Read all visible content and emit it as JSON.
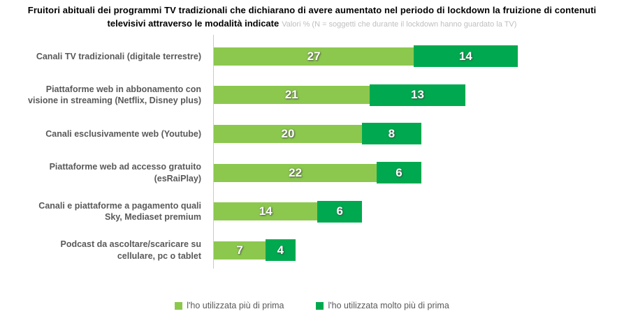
{
  "title": {
    "line1": "Fruitori abituali dei programmi TV tradizionali che dichiarano di avere aumentato nel periodo di lockdown la fruizione di contenuti",
    "line2": "televisivi attraverso le modalità indicate",
    "subtitle": "Valori % (N = soggetti che durante il lockdown hanno guardato la TV)"
  },
  "chart_data": {
    "type": "bar",
    "orientation": "horizontal",
    "stacked": true,
    "title": "Fruitori abituali dei programmi TV tradizionali che dichiarano di avere aumentato nel periodo di lockdown la fruizione di contenuti televisivi attraverso le modalità indicate",
    "subtitle": "Valori % (N = soggetti che durante il lockdown hanno guardato la TV)",
    "value_unit": "%",
    "categories": [
      [
        "Canali TV tradizionali (digitale terrestre)"
      ],
      [
        "Piattaforme web in abbonamento con",
        "visione in streaming (Netflix, Disney plus)"
      ],
      [
        "Canali esclusivamente web (Youtube)"
      ],
      [
        "Piattaforme web ad accesso gratuito",
        "(esRaiPlay)"
      ],
      [
        "Canali e piattaforme a pagamento quali",
        "Sky, Mediaset premium"
      ],
      [
        "Podcast da ascoltare/scaricare su",
        "cellulare, pc o tablet"
      ]
    ],
    "series": [
      {
        "name": "l'ho utilizzata più di prima",
        "color": "#8CC84E",
        "values": [
          27,
          21,
          20,
          22,
          14,
          7
        ]
      },
      {
        "name": "l'ho utilizzata molto più di prima",
        "color": "#00A94F",
        "values": [
          14,
          13,
          8,
          6,
          6,
          4
        ]
      }
    ],
    "totals": [
      41,
      34,
      28,
      28,
      20,
      11
    ],
    "xlim": [
      0,
      54
    ],
    "grid": false,
    "legend_position": "bottom",
    "data_labels": "inside-center, white bold"
  },
  "colors": {
    "series_light": "#8CC84E",
    "series_dark": "#00A94F",
    "category_label": "#595959",
    "subtitle_gray": "#BFBFBF",
    "axis_line": "#C9C9C9",
    "background": "#FFFFFF"
  }
}
